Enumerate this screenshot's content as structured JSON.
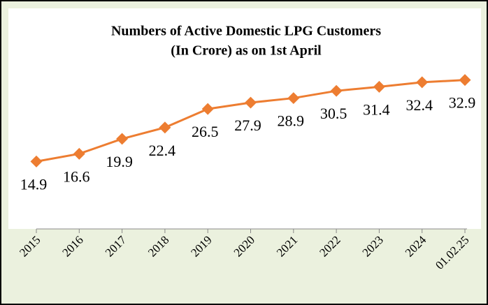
{
  "chart_data": {
    "type": "line",
    "title": "Numbers of Active Domestic LPG Customers",
    "subtitle": "(In Crore) as on 1st April",
    "categories": [
      "2015",
      "2016",
      "2017",
      "2018",
      "2019",
      "2020",
      "2021",
      "2022",
      "2023",
      "2024",
      "01.02.25"
    ],
    "series": [
      {
        "color": "#ed7d31",
        "values": [
          14.9,
          16.6,
          19.9,
          22.4,
          26.5,
          27.9,
          28.9,
          30.5,
          31.4,
          32.4,
          32.9
        ]
      }
    ],
    "ylim": [
      0,
      35
    ]
  }
}
